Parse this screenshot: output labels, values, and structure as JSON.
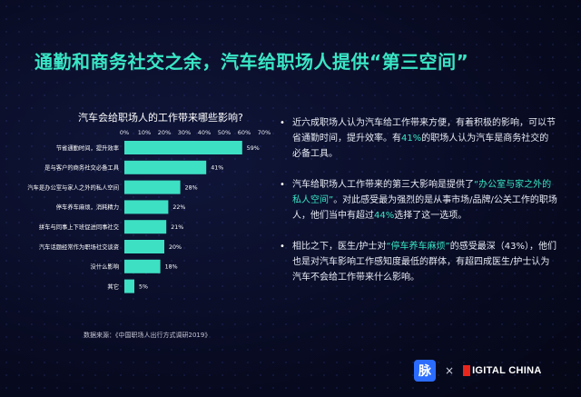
{
  "header": {
    "title": "通勤和商务社交之余，汽车给职场人提供“第三空间”"
  },
  "chart_data": {
    "type": "bar",
    "orientation": "horizontal",
    "title": "汽车会给职场人的工作带来哪些影响?",
    "categories": [
      "节省通勤时间，提升效率",
      "是与客户的商务社交必备工具",
      "汽车是办公室与家人之外的私人空间",
      "停车养车麻烦，消耗精力",
      "拼车与同事上下班促进同事社交",
      "汽车话题经常作为职场社交谈资",
      "没什么影响",
      "其它"
    ],
    "values": [
      59,
      41,
      28,
      22,
      21,
      20,
      18,
      5
    ],
    "value_labels": [
      "59%",
      "41%",
      "28%",
      "22%",
      "21%",
      "20%",
      "18%",
      "5%"
    ],
    "ticks": [
      "0%",
      "10%",
      "20%",
      "30%",
      "40%",
      "50%",
      "60%",
      "70%"
    ],
    "xlim": [
      0,
      70
    ],
    "xlabel": "",
    "ylabel": "",
    "bar_color": "#3de0c3",
    "grid": false,
    "legend": "none"
  },
  "source": "数据来源：《中国职场人出行方式调研2019》",
  "bullets": [
    {
      "parts": [
        {
          "text": "近六成职场人认为汽车给工作带来方便，有着积极的影响，可以节省通勤时间，提升效率。有",
          "hl": false
        },
        {
          "text": "41%",
          "hl": true
        },
        {
          "text": "的职场人认为汽车是商务社交的必备工具。",
          "hl": false
        }
      ]
    },
    {
      "parts": [
        {
          "text": "汽车给职场人工作带来的第三大影响是提供了",
          "hl": false
        },
        {
          "text": "“办公室与家之外的私人空间”",
          "hl": true
        },
        {
          "text": "。对此感受最为强烈的是从事市场/品牌/公关工作的职场人，他们当中有超过",
          "hl": false
        },
        {
          "text": "44%",
          "hl": true
        },
        {
          "text": "选择了这一选项。",
          "hl": false
        }
      ]
    },
    {
      "parts": [
        {
          "text": "相比之下，医生/护士对",
          "hl": false
        },
        {
          "text": "“停车养车麻烦”",
          "hl": true
        },
        {
          "text": "的感受最深（43%），他们也是对汽车影响工作感知度最低的群体，有超四成医生/护士认为汽车不会给工作带来什么影响。",
          "hl": false
        }
      ]
    }
  ],
  "footer": {
    "logo_mai": "脉",
    "separator": "×",
    "logo_dc": "IGITAL CHINA"
  },
  "colors": {
    "accent": "#39e6c5",
    "background": "#0a0d26",
    "highlight": "#39e6c5"
  }
}
